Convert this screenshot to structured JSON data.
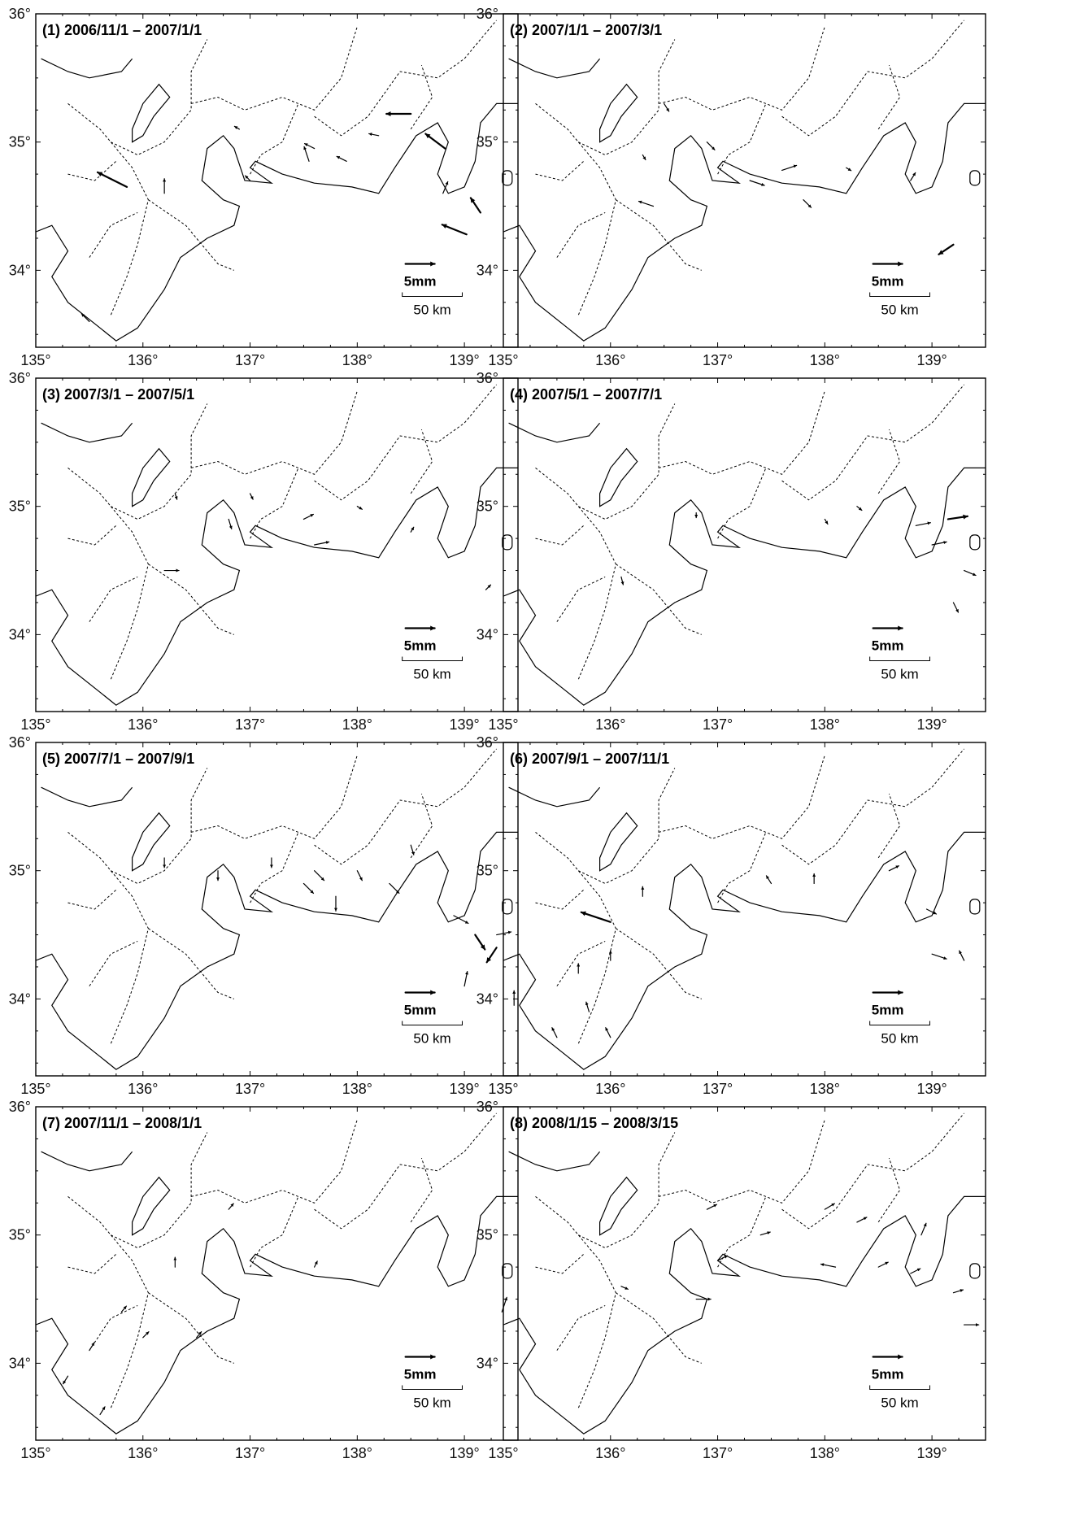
{
  "map": {
    "lon_ticks": [
      "135°",
      "136°",
      "137°",
      "138°",
      "139°"
    ],
    "lat_ticks": [
      "34°",
      "35°",
      "36°"
    ],
    "scale_arrow_label": "5mm",
    "distance_scale_label": "50 km"
  },
  "panels": [
    {
      "title": "(1) 2006/11/1 – 2007/1/1",
      "vectors": [
        [
          135.85,
          34.65,
          -3,
          1.5
        ],
        [
          138.5,
          35.22,
          -2.5,
          0
        ],
        [
          138.82,
          34.95,
          -2,
          1.5
        ],
        [
          138.8,
          34.6,
          0.5,
          1.2
        ],
        [
          139.02,
          34.28,
          -2.5,
          1
        ],
        [
          139.15,
          34.45,
          -1,
          1.5
        ],
        [
          137.55,
          34.85,
          -0.5,
          1.5
        ],
        [
          137.9,
          34.85,
          -1,
          0.5
        ],
        [
          136.2,
          34.6,
          0,
          1.5
        ],
        [
          135.5,
          33.6,
          -0.8,
          0.8
        ],
        [
          137.0,
          34.7,
          -0.5,
          0.5
        ],
        [
          137.6,
          34.95,
          -1,
          0.5
        ],
        [
          138.2,
          35.05,
          -1,
          0.2
        ],
        [
          136.9,
          35.1,
          -0.5,
          0.3
        ]
      ]
    },
    {
      "title": "(2) 2007/1/1 – 2007/3/1",
      "vectors": [
        [
          136.4,
          34.5,
          -1.5,
          0.5
        ],
        [
          136.9,
          35.0,
          0.8,
          -0.8
        ],
        [
          136.5,
          35.3,
          0.5,
          -0.8
        ],
        [
          137.3,
          34.7,
          1.5,
          -0.5
        ],
        [
          137.6,
          34.78,
          1.5,
          0.5
        ],
        [
          137.8,
          34.55,
          0.8,
          -0.8
        ],
        [
          138.8,
          34.7,
          0.5,
          0.8
        ],
        [
          139.2,
          34.2,
          -1.5,
          -1
        ],
        [
          138.2,
          34.8,
          0.5,
          -0.3
        ],
        [
          136.3,
          34.9,
          0.3,
          -0.5
        ]
      ]
    },
    {
      "title": "(3) 2007/3/1 – 2007/5/1",
      "vectors": [
        [
          136.2,
          34.5,
          1.5,
          0
        ],
        [
          136.8,
          34.9,
          0.3,
          -1
        ],
        [
          137.5,
          34.9,
          1,
          0.5
        ],
        [
          137.6,
          34.7,
          1.5,
          0.3
        ],
        [
          138.5,
          34.8,
          0.3,
          0.5
        ],
        [
          139.2,
          34.35,
          0.5,
          0.5
        ],
        [
          136.3,
          35.1,
          0.2,
          -0.6
        ],
        [
          137.0,
          35.1,
          0.3,
          -0.6
        ],
        [
          138.0,
          35.0,
          0.5,
          -0.3
        ]
      ]
    },
    {
      "title": "(4) 2007/5/1 – 2007/7/1",
      "vectors": [
        [
          138.85,
          34.85,
          1.5,
          0.3
        ],
        [
          139.15,
          34.9,
          2,
          0.3
        ],
        [
          139.0,
          34.7,
          1.5,
          0.3
        ],
        [
          139.3,
          34.5,
          1.2,
          -0.5
        ],
        [
          139.2,
          34.25,
          0.5,
          -1
        ],
        [
          138.0,
          34.9,
          0.3,
          -0.5
        ],
        [
          136.1,
          34.45,
          0.2,
          -0.8
        ],
        [
          136.8,
          34.95,
          0,
          -0.5
        ],
        [
          138.3,
          35.0,
          0.5,
          -0.4
        ]
      ]
    },
    {
      "title": "(5) 2007/7/1 – 2007/9/1",
      "vectors": [
        [
          138.9,
          34.65,
          1.5,
          -0.8
        ],
        [
          139.1,
          34.5,
          1,
          -1.5
        ],
        [
          139.3,
          34.4,
          -1,
          -1.5
        ],
        [
          139.0,
          34.1,
          0.3,
          1.5
        ],
        [
          139.3,
          34.5,
          1.5,
          0.3
        ],
        [
          138.3,
          34.9,
          1,
          -1
        ],
        [
          137.5,
          34.9,
          1,
          -1
        ],
        [
          137.6,
          35.0,
          1,
          -1
        ],
        [
          138.0,
          35.0,
          0.5,
          -1
        ],
        [
          136.2,
          35.1,
          0,
          -1
        ],
        [
          136.7,
          35.0,
          0,
          -1
        ],
        [
          137.2,
          35.1,
          0,
          -1
        ],
        [
          137.8,
          34.8,
          0,
          -1.5
        ],
        [
          138.5,
          35.2,
          0.3,
          -1
        ]
      ]
    },
    {
      "title": "(6) 2007/9/1 – 2007/11/1",
      "vectors": [
        [
          136.0,
          34.6,
          -3,
          1
        ],
        [
          135.5,
          33.7,
          -0.5,
          1
        ],
        [
          135.8,
          33.9,
          -0.3,
          1
        ],
        [
          136.0,
          33.7,
          -0.5,
          1
        ],
        [
          135.1,
          33.95,
          0,
          1.5
        ],
        [
          136.0,
          34.3,
          0,
          1
        ],
        [
          139.0,
          34.35,
          1.5,
          -0.5
        ],
        [
          139.3,
          34.3,
          -0.5,
          1
        ],
        [
          138.95,
          34.7,
          1,
          -0.5
        ],
        [
          137.5,
          34.9,
          -0.5,
          0.8
        ],
        [
          137.9,
          34.9,
          0,
          1
        ],
        [
          138.6,
          35.0,
          1,
          0.5
        ],
        [
          135.7,
          34.2,
          0,
          1
        ],
        [
          136.3,
          34.8,
          0,
          1
        ]
      ]
    },
    {
      "title": "(7) 2007/11/1 – 2008/1/1",
      "vectors": [
        [
          139.35,
          34.4,
          0.5,
          1.5
        ],
        [
          135.6,
          33.6,
          0.5,
          0.8
        ],
        [
          135.3,
          33.9,
          -0.5,
          -0.8
        ],
        [
          136.3,
          34.75,
          0,
          1
        ],
        [
          135.8,
          34.4,
          0.5,
          0.6
        ],
        [
          136.0,
          34.2,
          0.6,
          0.6
        ],
        [
          135.5,
          34.1,
          0.5,
          0.8
        ],
        [
          136.8,
          35.2,
          0.5,
          0.6
        ],
        [
          137.6,
          34.75,
          0.3,
          0.6
        ],
        [
          136.5,
          34.2,
          0.5,
          0.6
        ]
      ]
    },
    {
      "title": "(8) 2008/1/15 – 2008/3/15",
      "vectors": [
        [
          136.8,
          34.5,
          1.5,
          0
        ],
        [
          138.5,
          34.75,
          1,
          0.5
        ],
        [
          138.1,
          34.75,
          -1.5,
          0.3
        ],
        [
          138.8,
          34.7,
          1,
          0.5
        ],
        [
          139.2,
          34.55,
          1,
          0.3
        ],
        [
          139.3,
          34.3,
          1.5,
          0
        ],
        [
          138.9,
          35.0,
          0.5,
          1.2
        ],
        [
          137.4,
          35.0,
          1,
          0.3
        ],
        [
          136.9,
          35.2,
          1,
          0.5
        ],
        [
          138.3,
          35.1,
          1,
          0.5
        ],
        [
          137.0,
          34.8,
          1,
          0.5
        ],
        [
          136.1,
          34.6,
          0.7,
          -0.3
        ],
        [
          138.0,
          35.2,
          1,
          0.6
        ]
      ]
    }
  ]
}
